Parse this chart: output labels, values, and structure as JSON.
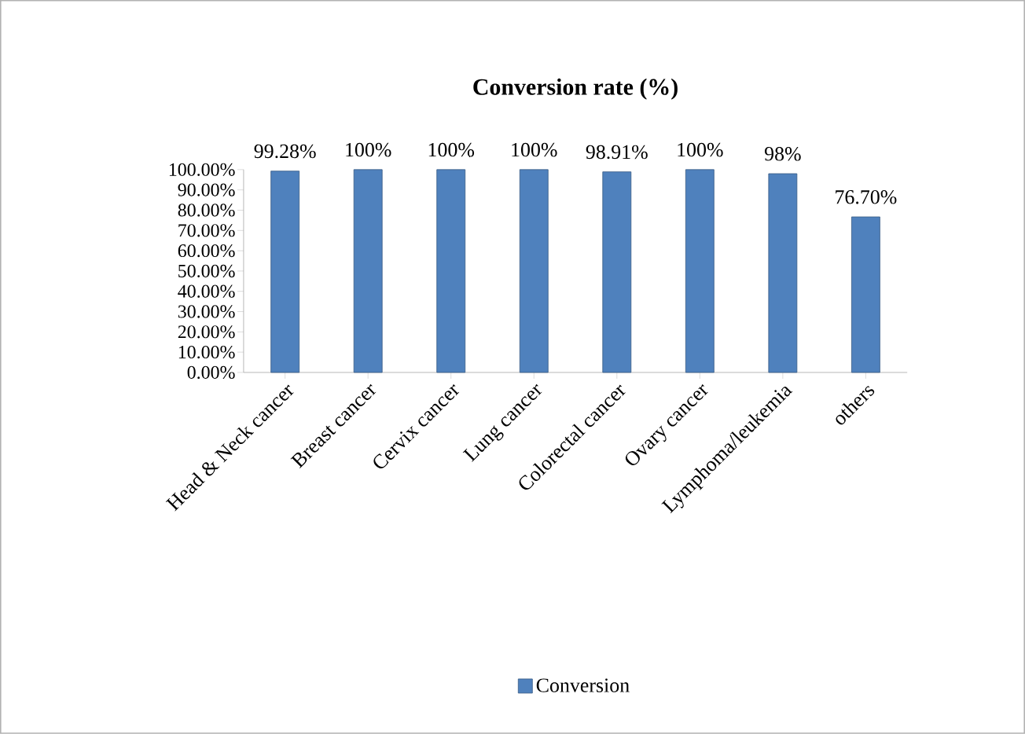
{
  "chart_data": {
    "type": "bar",
    "title": "Conversion rate (%)",
    "categories": [
      "Head & Neck cancer",
      "Breast cancer",
      "Cervix cancer",
      "Lung cancer",
      "Colorectal cancer",
      "Ovary cancer",
      "Lymphoma/leukemia",
      "others"
    ],
    "series": [
      {
        "name": "Conversion",
        "color": "#4f81bd",
        "values": [
          99.28,
          100,
          100,
          100,
          98.91,
          100,
          98,
          76.7
        ],
        "value_labels": [
          "99.28%",
          "100%",
          "100%",
          "100%",
          "98.91%",
          "100%",
          "98%",
          "76.70%"
        ]
      }
    ],
    "ylim": [
      0,
      100
    ],
    "yticks": [
      {
        "value": 0,
        "label": "0.00%"
      },
      {
        "value": 10,
        "label": "10.00%"
      },
      {
        "value": 20,
        "label": "20.00%"
      },
      {
        "value": 30,
        "label": "30.00%"
      },
      {
        "value": 40,
        "label": "40.00%"
      },
      {
        "value": 50,
        "label": "50.00%"
      },
      {
        "value": 60,
        "label": "60.00%"
      },
      {
        "value": 70,
        "label": "70.00%"
      },
      {
        "value": 80,
        "label": "80.00%"
      },
      {
        "value": 90,
        "label": "90.00%"
      },
      {
        "value": 100,
        "label": "100.00%"
      }
    ],
    "legend": "bottom",
    "grid": false
  }
}
